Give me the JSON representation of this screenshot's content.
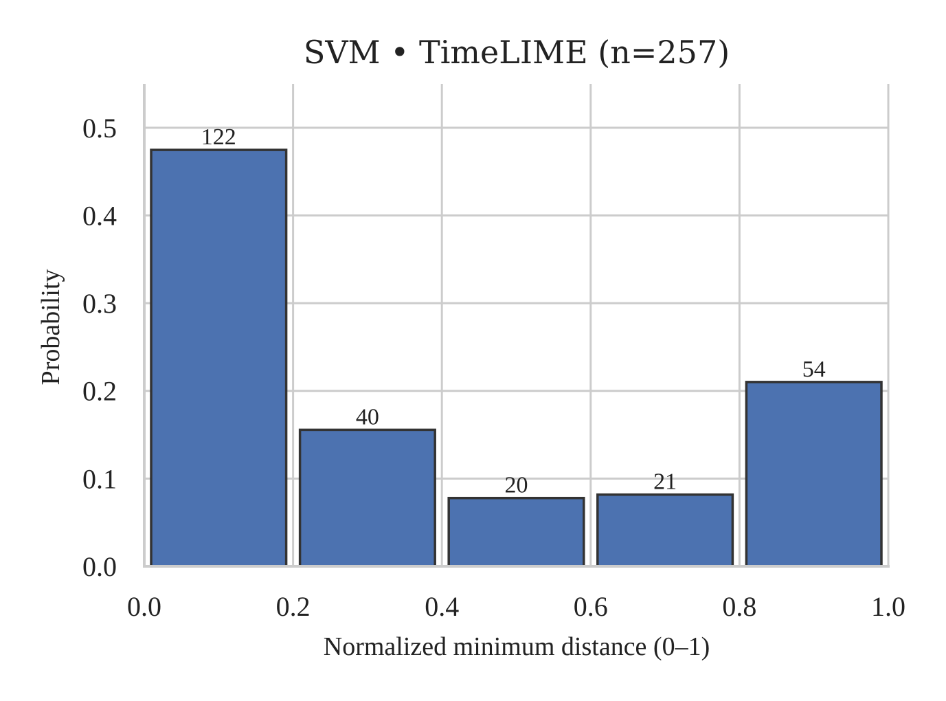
{
  "chart_data": {
    "type": "bar",
    "title": "SVM • TimeLIME  (n=257)",
    "xlabel": "Normalized minimum distance (0–1)",
    "ylabel": "Probability",
    "bins": [
      [
        0.0,
        0.2
      ],
      [
        0.2,
        0.4
      ],
      [
        0.4,
        0.6
      ],
      [
        0.6,
        0.8
      ],
      [
        0.8,
        1.0
      ]
    ],
    "values": [
      0.4747,
      0.1556,
      0.0778,
      0.0817,
      0.2101
    ],
    "counts": [
      122,
      40,
      20,
      21,
      54
    ],
    "count_labels": [
      "122",
      "40",
      "20",
      "21",
      "54"
    ],
    "xlim": [
      0.0,
      1.0
    ],
    "ylim": [
      0.0,
      0.55
    ],
    "xticks": [
      0.0,
      0.2,
      0.4,
      0.6,
      0.8,
      1.0
    ],
    "xtick_labels": [
      "0.0",
      "0.2",
      "0.4",
      "0.6",
      "0.8",
      "1.0"
    ],
    "yticks": [
      0.0,
      0.1,
      0.2,
      0.3,
      0.4,
      0.5
    ],
    "ytick_labels": [
      "0.0",
      "0.1",
      "0.2",
      "0.3",
      "0.4",
      "0.5"
    ],
    "grid": true,
    "colors": {
      "bar": "#4c72b0",
      "edge": "#333333",
      "grid": "#cccccc"
    }
  }
}
